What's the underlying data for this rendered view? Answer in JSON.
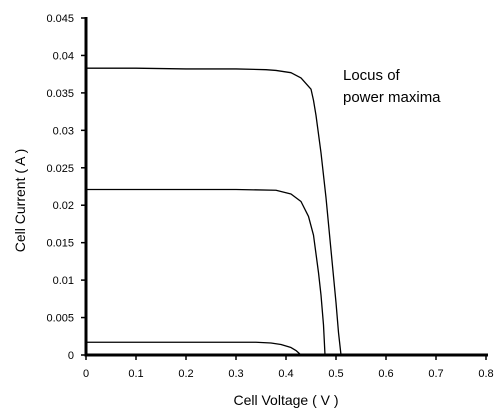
{
  "chart_data": {
    "type": "line",
    "title": "",
    "xlabel": "Cell Voltage ( V )",
    "ylabel": "Cell Current  ( A )",
    "xlim": [
      0,
      0.8
    ],
    "ylim": [
      0,
      0.045
    ],
    "xticks": [
      "0",
      "0.1",
      "0.2",
      "0.3",
      "0.4",
      "0.5",
      "0.6",
      "0.7",
      "0.8"
    ],
    "yticks": [
      "0",
      "0.005",
      "0.01",
      "0.015",
      "0.02",
      "0.025",
      "0.03",
      "0.035",
      "0.04",
      "0.045"
    ],
    "grid": false,
    "legend": "none",
    "annotation": [
      "Locus of",
      "power maxima"
    ],
    "series": [
      {
        "points": [
          [
            0,
            0.0383
          ],
          [
            0.1,
            0.0383
          ],
          [
            0.2,
            0.0382
          ],
          [
            0.3,
            0.0382
          ],
          [
            0.36,
            0.0381
          ],
          [
            0.38,
            0.038
          ],
          [
            0.41,
            0.0377
          ],
          [
            0.43,
            0.037
          ],
          [
            0.45,
            0.0355
          ],
          [
            0.455,
            0.034
          ],
          [
            0.46,
            0.032
          ],
          [
            0.47,
            0.027
          ],
          [
            0.48,
            0.021
          ],
          [
            0.49,
            0.014
          ],
          [
            0.5,
            0.007
          ],
          [
            0.505,
            0.003
          ],
          [
            0.51,
            0.0
          ],
          [
            0.8,
            0.0
          ]
        ]
      },
      {
        "points": [
          [
            0,
            0.0221
          ],
          [
            0.1,
            0.0221
          ],
          [
            0.2,
            0.0221
          ],
          [
            0.3,
            0.0221
          ],
          [
            0.38,
            0.022
          ],
          [
            0.41,
            0.0215
          ],
          [
            0.43,
            0.0205
          ],
          [
            0.445,
            0.0185
          ],
          [
            0.455,
            0.016
          ],
          [
            0.465,
            0.011
          ],
          [
            0.47,
            0.008
          ],
          [
            0.475,
            0.004
          ],
          [
            0.478,
            0.0
          ],
          [
            0.8,
            0.0
          ]
        ]
      },
      {
        "points": [
          [
            0,
            0.0017
          ],
          [
            0.1,
            0.0017
          ],
          [
            0.2,
            0.0017
          ],
          [
            0.3,
            0.0017
          ],
          [
            0.34,
            0.0017
          ],
          [
            0.37,
            0.0016
          ],
          [
            0.39,
            0.0014
          ],
          [
            0.41,
            0.001
          ],
          [
            0.42,
            0.0006
          ],
          [
            0.43,
            0.0
          ],
          [
            0.8,
            0.0
          ]
        ]
      }
    ]
  }
}
